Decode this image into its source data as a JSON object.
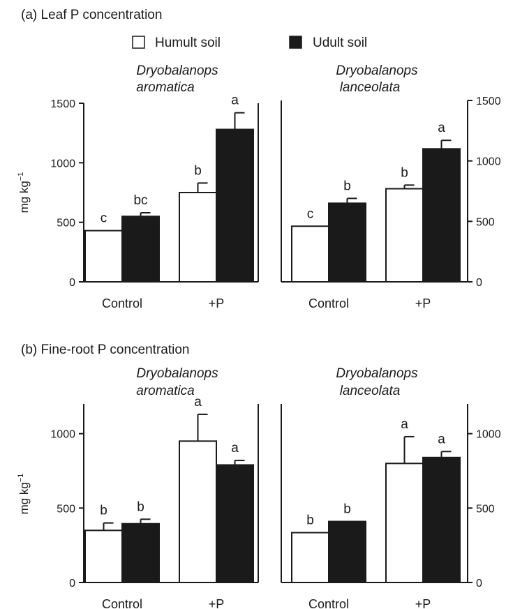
{
  "legend": {
    "items": [
      {
        "label": "Humult soil",
        "color": "#ffffff"
      },
      {
        "label": "Udult soil",
        "color": "#1a1a1a"
      }
    ]
  },
  "colors": {
    "humult": "#ffffff",
    "udult": "#1a1a1a",
    "stroke": "#1a1a1a"
  },
  "chart_data": [
    {
      "type": "bar",
      "panel": "(a) Leaf P concentration",
      "species_line1": "Dryobalanops",
      "species_line2": "aromatica",
      "ylabel": "mg kg",
      "ylabel_sup": "−1",
      "axis_side": "left",
      "ylim": [
        0,
        1500
      ],
      "yticks": [
        0,
        500,
        1000,
        1500
      ],
      "categories": [
        "Control",
        "+P"
      ],
      "series": [
        {
          "name": "Humult soil",
          "values": [
            430,
            750
          ],
          "errors": [
            0,
            80
          ],
          "letters": [
            "c",
            "b"
          ]
        },
        {
          "name": "Udult soil",
          "values": [
            550,
            1280
          ],
          "errors": [
            30,
            140
          ],
          "letters": [
            "bc",
            "a"
          ]
        }
      ]
    },
    {
      "type": "bar",
      "panel": "",
      "species_line1": "Dryobalanops",
      "species_line2": "lanceolata",
      "ylabel": "",
      "ylabel_sup": "",
      "axis_side": "right",
      "ylim": [
        0,
        1500
      ],
      "yticks": [
        0,
        500,
        1000,
        1500
      ],
      "categories": [
        "Control",
        "+P"
      ],
      "series": [
        {
          "name": "Humult soil",
          "values": [
            460,
            770
          ],
          "errors": [
            0,
            30
          ],
          "letters": [
            "c",
            "b"
          ]
        },
        {
          "name": "Udult soil",
          "values": [
            650,
            1100
          ],
          "errors": [
            40,
            70
          ],
          "letters": [
            "b",
            "a"
          ]
        }
      ]
    },
    {
      "type": "bar",
      "panel": "(b) Fine-root P concentration",
      "species_line1": "Dryobalanops",
      "species_line2": "aromatica",
      "ylabel": "mg kg",
      "ylabel_sup": "−1",
      "axis_side": "left",
      "ylim": [
        0,
        1200
      ],
      "yticks": [
        0,
        500,
        1000
      ],
      "categories": [
        "Control",
        "+P"
      ],
      "series": [
        {
          "name": "Humult soil",
          "values": [
            350,
            950
          ],
          "errors": [
            50,
            180
          ],
          "letters": [
            "b",
            "a"
          ]
        },
        {
          "name": "Udult soil",
          "values": [
            395,
            790
          ],
          "errors": [
            30,
            30
          ],
          "letters": [
            "b",
            "a"
          ]
        }
      ]
    },
    {
      "type": "bar",
      "panel": "",
      "species_line1": "Dryobalanops",
      "species_line2": "lanceolata",
      "ylabel": "",
      "ylabel_sup": "",
      "axis_side": "right",
      "ylim": [
        0,
        1200
      ],
      "yticks": [
        0,
        500,
        1000
      ],
      "categories": [
        "Control",
        "+P"
      ],
      "series": [
        {
          "name": "Humult soil",
          "values": [
            335,
            800
          ],
          "errors": [
            0,
            180
          ],
          "letters": [
            "b",
            "a"
          ]
        },
        {
          "name": "Udult soil",
          "values": [
            410,
            840
          ],
          "errors": [
            0,
            40
          ],
          "letters": [
            "b",
            "a"
          ]
        }
      ]
    }
  ]
}
